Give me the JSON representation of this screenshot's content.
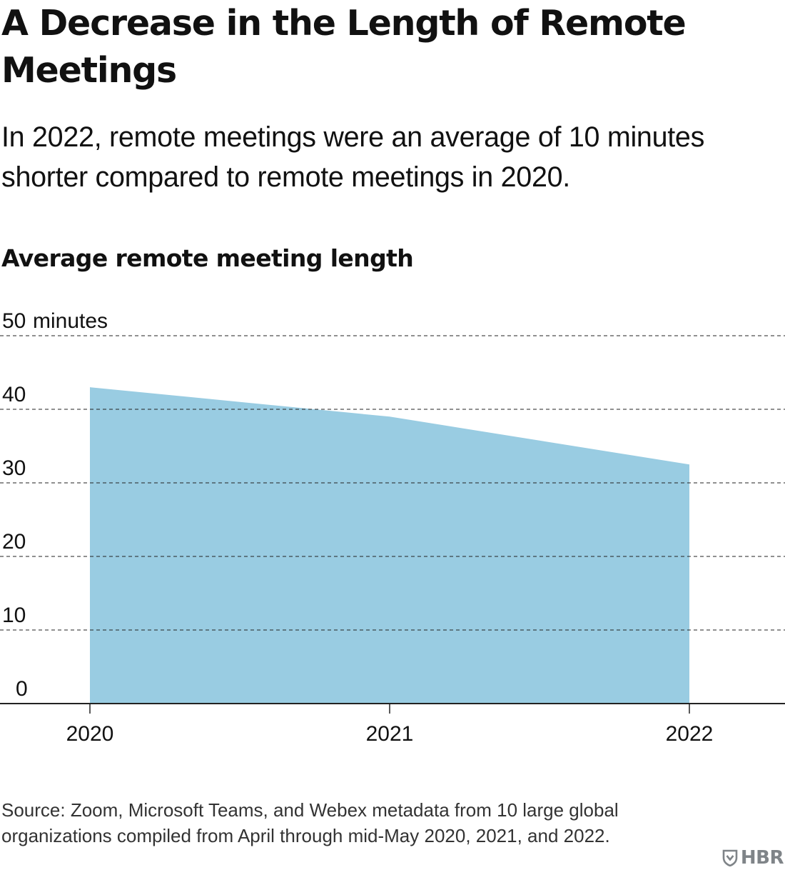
{
  "header": {
    "title": "A Decrease in the Length of Remote Meetings",
    "subtitle": "In 2022, remote meetings were an average of 10 minutes shorter compared to remote meetings in 2020."
  },
  "chart_data": {
    "type": "area",
    "title": "Average remote meeting length",
    "x": [
      "2020",
      "2021",
      "2022"
    ],
    "series": [
      {
        "values": [
          43,
          39,
          32.5
        ]
      }
    ],
    "y_unit_label": "minutes",
    "yticks": [
      0,
      10,
      20,
      30,
      40,
      50
    ],
    "ylim": [
      0,
      50
    ],
    "grid": "horizontal dashed",
    "legend": "none",
    "colors": {
      "area": "#99cce2",
      "axis": "#222222",
      "grid": "#222222"
    }
  },
  "footer": {
    "source": "Source: Zoom, Microsoft Teams, and Webex metadata from 10 large global organizations compiled from April through mid-May 2020, 2021, and 2022.",
    "logo_text": "HBR",
    "logo_icon": "shield-icon"
  }
}
